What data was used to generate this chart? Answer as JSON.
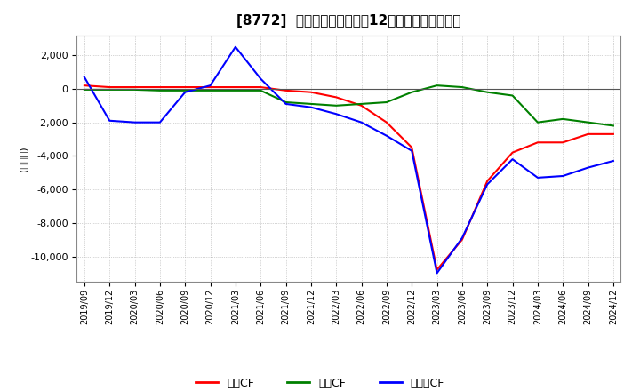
{
  "title": "[8772]  キャッシュフローの12か月移動合計の推移",
  "ylabel": "(百万円)",
  "ylim": [
    -11500,
    3200
  ],
  "yticks": [
    2000,
    0,
    -2000,
    -4000,
    -6000,
    -8000,
    -10000
  ],
  "background_color": "#ffffff",
  "grid_color": "#aaaaaa",
  "plot_bg_color": "#ffffff",
  "x_labels": [
    "2019/09",
    "2019/12",
    "2020/03",
    "2020/06",
    "2020/09",
    "2020/12",
    "2021/03",
    "2021/06",
    "2021/09",
    "2021/12",
    "2022/03",
    "2022/06",
    "2022/09",
    "2022/12",
    "2023/03",
    "2023/06",
    "2023/09",
    "2023/12",
    "2024/03",
    "2024/06",
    "2024/09",
    "2024/12"
  ],
  "series": {
    "営業CF": {
      "color": "#ff0000",
      "values": [
        200,
        100,
        100,
        100,
        100,
        100,
        100,
        100,
        -100,
        -200,
        -500,
        -1000,
        -2000,
        -3500,
        -10800,
        -9000,
        -5500,
        -3800,
        -3200,
        -3200,
        -2700,
        -2700
      ]
    },
    "投資CF": {
      "color": "#008000",
      "values": [
        -50,
        -50,
        -50,
        -100,
        -100,
        -100,
        -100,
        -100,
        -800,
        -900,
        -1000,
        -900,
        -800,
        -200,
        200,
        100,
        -200,
        -400,
        -2000,
        -1800,
        -2000,
        -2200
      ]
    },
    "フリーCF": {
      "color": "#0000ff",
      "values": [
        700,
        -1900,
        -2000,
        -2000,
        -200,
        200,
        2500,
        600,
        -900,
        -1100,
        -1500,
        -2000,
        -2800,
        -3700,
        -11000,
        -8900,
        -5700,
        -4200,
        -5300,
        -5200,
        -4700,
        -4300
      ]
    }
  },
  "legend_labels": [
    "営業CF",
    "投資CF",
    "フリーCF"
  ],
  "legend_colors": [
    "#ff0000",
    "#008000",
    "#0000ff"
  ]
}
